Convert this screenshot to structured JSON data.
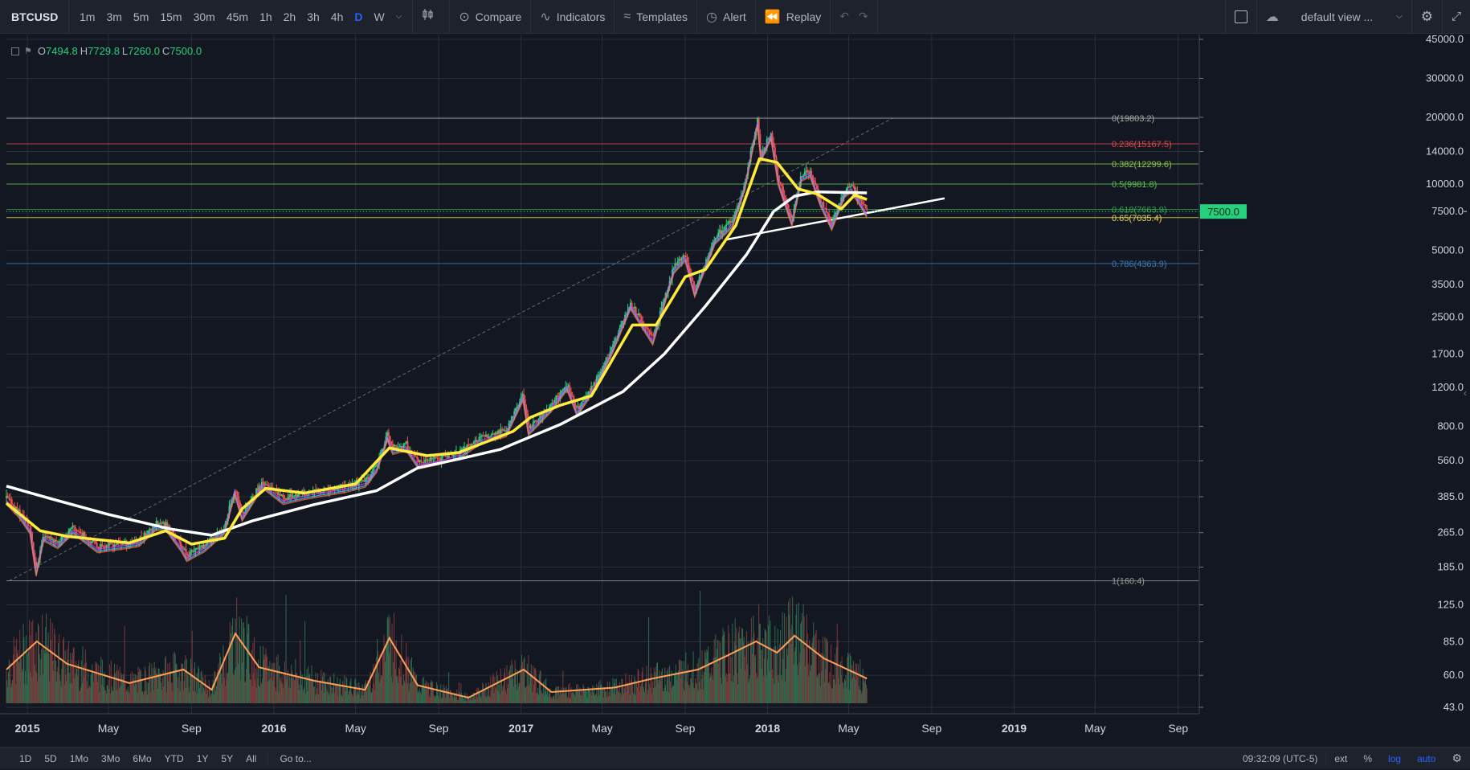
{
  "toolbar": {
    "symbol": "BTCUSD",
    "intervals": [
      "1m",
      "3m",
      "5m",
      "15m",
      "30m",
      "45m",
      "1h",
      "2h",
      "3h",
      "4h",
      "D",
      "W"
    ],
    "active_interval": "D",
    "compare": "Compare",
    "indicators": "Indicators",
    "templates": "Templates",
    "alert": "Alert",
    "replay": "Replay",
    "layout_name": "default view ..."
  },
  "ohlc": {
    "o_label": "O",
    "o": "7494.8",
    "h_label": "H",
    "h": "7729.8",
    "l_label": "L",
    "l": "7260.0",
    "c_label": "C",
    "c": "7500.0"
  },
  "bottom": {
    "ranges": [
      "1D",
      "5D",
      "1Mo",
      "3Mo",
      "6Mo",
      "YTD",
      "1Y",
      "5Y",
      "All"
    ],
    "goto": "Go to...",
    "time": "09:32:09 (UTC-5)",
    "ext": "ext",
    "percent": "%",
    "log": "log",
    "auto": "auto"
  },
  "colors": {
    "background": "#131722",
    "up": "#26d07c",
    "down": "#ef5350",
    "ma_fast": "#ffeb3b",
    "ma_slow": "#ffffff",
    "volume_ma": "#ff9e57",
    "accent": "#2962ff"
  },
  "chart_data": {
    "type": "line",
    "scale": "log",
    "symbol": "BTCUSD",
    "interval": "D",
    "y_ticks": [
      45000,
      30000,
      20000,
      14000,
      10000,
      7500,
      5000,
      3500,
      2500,
      1700,
      1200,
      800,
      560,
      385,
      265,
      185,
      125,
      85,
      60,
      43
    ],
    "y_tick_labels": [
      "45000.0",
      "30000.0",
      "20000.0",
      "14000.0",
      "10000.0",
      "7500.0",
      "5000.0",
      "3500.0",
      "2500.0",
      "1700.0",
      "1200.0",
      "800.0",
      "560.0",
      "385.0",
      "265.0",
      "185.0",
      "125.0",
      "85.0",
      "60.0",
      "43.0"
    ],
    "x_ticks": [
      {
        "date": "2015-01-01",
        "label": "2015",
        "bold": true
      },
      {
        "date": "2015-05-01",
        "label": "May",
        "bold": false
      },
      {
        "date": "2015-09-01",
        "label": "Sep",
        "bold": false
      },
      {
        "date": "2016-01-01",
        "label": "2016",
        "bold": true
      },
      {
        "date": "2016-05-01",
        "label": "May",
        "bold": false
      },
      {
        "date": "2016-09-01",
        "label": "Sep",
        "bold": false
      },
      {
        "date": "2017-01-01",
        "label": "2017",
        "bold": true
      },
      {
        "date": "2017-05-01",
        "label": "May",
        "bold": false
      },
      {
        "date": "2017-09-01",
        "label": "Sep",
        "bold": false
      },
      {
        "date": "2018-01-01",
        "label": "2018",
        "bold": true
      },
      {
        "date": "2018-05-01",
        "label": "May",
        "bold": false
      },
      {
        "date": "2018-09-01",
        "label": "Sep",
        "bold": false
      },
      {
        "date": "2019-01-01",
        "label": "2019",
        "bold": true
      },
      {
        "date": "2019-05-01",
        "label": "May",
        "bold": false
      },
      {
        "date": "2019-09-01",
        "label": "Sep",
        "bold": false
      }
    ],
    "x_range": [
      "2014-12-01",
      "2019-10-01"
    ],
    "grid": true,
    "price_series": [
      {
        "date": "2014-12-01",
        "value": 380
      },
      {
        "date": "2014-12-20",
        "value": 330
      },
      {
        "date": "2015-01-05",
        "value": 280
      },
      {
        "date": "2015-01-14",
        "value": 180
      },
      {
        "date": "2015-01-25",
        "value": 260
      },
      {
        "date": "2015-02-15",
        "value": 240
      },
      {
        "date": "2015-03-10",
        "value": 280
      },
      {
        "date": "2015-04-15",
        "value": 230
      },
      {
        "date": "2015-05-15",
        "value": 237
      },
      {
        "date": "2015-06-15",
        "value": 245
      },
      {
        "date": "2015-07-10",
        "value": 290
      },
      {
        "date": "2015-07-25",
        "value": 290
      },
      {
        "date": "2015-08-18",
        "value": 230
      },
      {
        "date": "2015-08-25",
        "value": 210
      },
      {
        "date": "2015-09-20",
        "value": 232
      },
      {
        "date": "2015-10-20",
        "value": 280
      },
      {
        "date": "2015-11-04",
        "value": 420
      },
      {
        "date": "2015-11-15",
        "value": 320
      },
      {
        "date": "2015-12-15",
        "value": 450
      },
      {
        "date": "2016-01-15",
        "value": 380
      },
      {
        "date": "2016-02-15",
        "value": 400
      },
      {
        "date": "2016-03-15",
        "value": 415
      },
      {
        "date": "2016-04-15",
        "value": 430
      },
      {
        "date": "2016-05-15",
        "value": 455
      },
      {
        "date": "2016-06-01",
        "value": 530
      },
      {
        "date": "2016-06-17",
        "value": 740
      },
      {
        "date": "2016-06-25",
        "value": 640
      },
      {
        "date": "2016-07-15",
        "value": 665
      },
      {
        "date": "2016-08-02",
        "value": 550
      },
      {
        "date": "2016-09-01",
        "value": 575
      },
      {
        "date": "2016-10-01",
        "value": 610
      },
      {
        "date": "2016-11-01",
        "value": 710
      },
      {
        "date": "2016-12-10",
        "value": 770
      },
      {
        "date": "2017-01-04",
        "value": 1120
      },
      {
        "date": "2017-01-12",
        "value": 780
      },
      {
        "date": "2017-02-15",
        "value": 1000
      },
      {
        "date": "2017-03-10",
        "value": 1250
      },
      {
        "date": "2017-03-25",
        "value": 950
      },
      {
        "date": "2017-04-20",
        "value": 1250
      },
      {
        "date": "2017-05-15",
        "value": 1800
      },
      {
        "date": "2017-06-12",
        "value": 2900
      },
      {
        "date": "2017-07-15",
        "value": 2000
      },
      {
        "date": "2017-08-15",
        "value": 4200
      },
      {
        "date": "2017-09-01",
        "value": 4800
      },
      {
        "date": "2017-09-15",
        "value": 3300
      },
      {
        "date": "2017-10-15",
        "value": 5700
      },
      {
        "date": "2017-11-10",
        "value": 6800
      },
      {
        "date": "2017-11-28",
        "value": 10000
      },
      {
        "date": "2017-12-17",
        "value": 19500
      },
      {
        "date": "2017-12-22",
        "value": 13500
      },
      {
        "date": "2018-01-06",
        "value": 17000
      },
      {
        "date": "2018-01-17",
        "value": 10500
      },
      {
        "date": "2018-02-06",
        "value": 6900
      },
      {
        "date": "2018-02-20",
        "value": 11000
      },
      {
        "date": "2018-03-05",
        "value": 11500
      },
      {
        "date": "2018-03-20",
        "value": 8500
      },
      {
        "date": "2018-04-06",
        "value": 6600
      },
      {
        "date": "2018-04-25",
        "value": 9300
      },
      {
        "date": "2018-05-05",
        "value": 9800
      },
      {
        "date": "2018-05-20",
        "value": 8300
      },
      {
        "date": "2018-05-28",
        "value": 7500
      }
    ],
    "ma_fast": [
      {
        "date": "2014-12-01",
        "value": 360
      },
      {
        "date": "2015-01-20",
        "value": 270
      },
      {
        "date": "2015-03-01",
        "value": 255
      },
      {
        "date": "2015-06-01",
        "value": 238
      },
      {
        "date": "2015-07-25",
        "value": 270
      },
      {
        "date": "2015-09-01",
        "value": 235
      },
      {
        "date": "2015-10-20",
        "value": 250
      },
      {
        "date": "2015-11-15",
        "value": 340
      },
      {
        "date": "2015-12-20",
        "value": 420
      },
      {
        "date": "2016-02-15",
        "value": 400
      },
      {
        "date": "2016-05-01",
        "value": 440
      },
      {
        "date": "2016-06-20",
        "value": 640
      },
      {
        "date": "2016-08-15",
        "value": 590
      },
      {
        "date": "2016-10-01",
        "value": 610
      },
      {
        "date": "2016-12-20",
        "value": 760
      },
      {
        "date": "2017-01-15",
        "value": 880
      },
      {
        "date": "2017-03-01",
        "value": 1000
      },
      {
        "date": "2017-04-15",
        "value": 1100
      },
      {
        "date": "2017-06-15",
        "value": 2300
      },
      {
        "date": "2017-07-20",
        "value": 2300
      },
      {
        "date": "2017-09-01",
        "value": 3800
      },
      {
        "date": "2017-10-01",
        "value": 4100
      },
      {
        "date": "2017-11-15",
        "value": 6500
      },
      {
        "date": "2017-12-20",
        "value": 13000
      },
      {
        "date": "2018-01-15",
        "value": 12500
      },
      {
        "date": "2018-02-15",
        "value": 9500
      },
      {
        "date": "2018-03-15",
        "value": 9000
      },
      {
        "date": "2018-04-20",
        "value": 7700
      },
      {
        "date": "2018-05-10",
        "value": 8900
      },
      {
        "date": "2018-05-28",
        "value": 8500
      }
    ],
    "ma_slow": [
      {
        "date": "2014-12-01",
        "value": 430
      },
      {
        "date": "2015-02-01",
        "value": 380
      },
      {
        "date": "2015-05-01",
        "value": 320
      },
      {
        "date": "2015-08-01",
        "value": 275
      },
      {
        "date": "2015-10-01",
        "value": 258
      },
      {
        "date": "2015-12-01",
        "value": 300
      },
      {
        "date": "2016-03-01",
        "value": 355
      },
      {
        "date": "2016-06-01",
        "value": 410
      },
      {
        "date": "2016-08-01",
        "value": 520
      },
      {
        "date": "2016-10-01",
        "value": 570
      },
      {
        "date": "2016-12-01",
        "value": 630
      },
      {
        "date": "2017-03-01",
        "value": 820
      },
      {
        "date": "2017-06-01",
        "value": 1150
      },
      {
        "date": "2017-08-01",
        "value": 1700
      },
      {
        "date": "2017-10-01",
        "value": 2800
      },
      {
        "date": "2017-12-01",
        "value": 4800
      },
      {
        "date": "2018-01-10",
        "value": 7500
      },
      {
        "date": "2018-02-10",
        "value": 8800
      },
      {
        "date": "2018-03-15",
        "value": 9200
      },
      {
        "date": "2018-05-28",
        "value": 9100
      }
    ],
    "fib_levels": [
      {
        "ratio": "0",
        "value": 19803.2,
        "label": "0(19803.2)",
        "color": "#a8a8a8"
      },
      {
        "ratio": "0.236",
        "value": 15167.5,
        "label": "0.236(15167.5)",
        "color": "#e04747"
      },
      {
        "ratio": "0.382",
        "value": 12299.6,
        "label": "0.382(12299.6)",
        "color": "#8bc34a"
      },
      {
        "ratio": "0.5",
        "value": 9981.8,
        "label": "0.5(9981.8)",
        "color": "#5cbf4a"
      },
      {
        "ratio": "0.618",
        "value": 7663.9,
        "label": "0.618(7663.9)",
        "color": "#2fa24a"
      },
      {
        "ratio": "0.65",
        "value": 7035.4,
        "label": "0.65(7035.4)",
        "color": "#e6d65a"
      },
      {
        "ratio": "0.786",
        "value": 4363.9,
        "label": "0.786(4363.9)",
        "color": "#3d7bb5"
      },
      {
        "ratio": "1",
        "value": 160.4,
        "label": "1(160.4)",
        "color": "#9b9b9b"
      }
    ],
    "trendlines": [
      {
        "from": {
          "date": "2014-12-05",
          "value": 160.4
        },
        "to": {
          "date": "2018-07-05",
          "value": 19803.2
        },
        "style": "dashed",
        "color": "#8a8a8a"
      },
      {
        "from": {
          "date": "2017-11-01",
          "value": 5600
        },
        "to": {
          "date": "2018-09-20",
          "value": 8600
        },
        "style": "solid",
        "color": "#ffffff"
      }
    ],
    "last_price": {
      "value": 7500,
      "label": "7500.0"
    },
    "volume_ma": [
      {
        "date": "2014-12-01",
        "value": 0.3
      },
      {
        "date": "2015-01-15",
        "value": 0.55
      },
      {
        "date": "2015-03-01",
        "value": 0.35
      },
      {
        "date": "2015-06-01",
        "value": 0.18
      },
      {
        "date": "2015-08-20",
        "value": 0.3
      },
      {
        "date": "2015-10-01",
        "value": 0.12
      },
      {
        "date": "2015-11-05",
        "value": 0.62
      },
      {
        "date": "2015-12-10",
        "value": 0.32
      },
      {
        "date": "2016-03-01",
        "value": 0.2
      },
      {
        "date": "2016-05-15",
        "value": 0.12
      },
      {
        "date": "2016-06-20",
        "value": 0.58
      },
      {
        "date": "2016-08-01",
        "value": 0.16
      },
      {
        "date": "2016-10-15",
        "value": 0.05
      },
      {
        "date": "2017-01-05",
        "value": 0.3
      },
      {
        "date": "2017-02-15",
        "value": 0.1
      },
      {
        "date": "2017-05-20",
        "value": 0.14
      },
      {
        "date": "2017-07-15",
        "value": 0.22
      },
      {
        "date": "2017-09-20",
        "value": 0.3
      },
      {
        "date": "2017-11-01",
        "value": 0.42
      },
      {
        "date": "2017-12-15",
        "value": 0.55
      },
      {
        "date": "2018-01-15",
        "value": 0.45
      },
      {
        "date": "2018-02-10",
        "value": 0.6
      },
      {
        "date": "2018-03-25",
        "value": 0.4
      },
      {
        "date": "2018-05-28",
        "value": 0.22
      }
    ],
    "volume_scale": "relative (0-1)"
  }
}
